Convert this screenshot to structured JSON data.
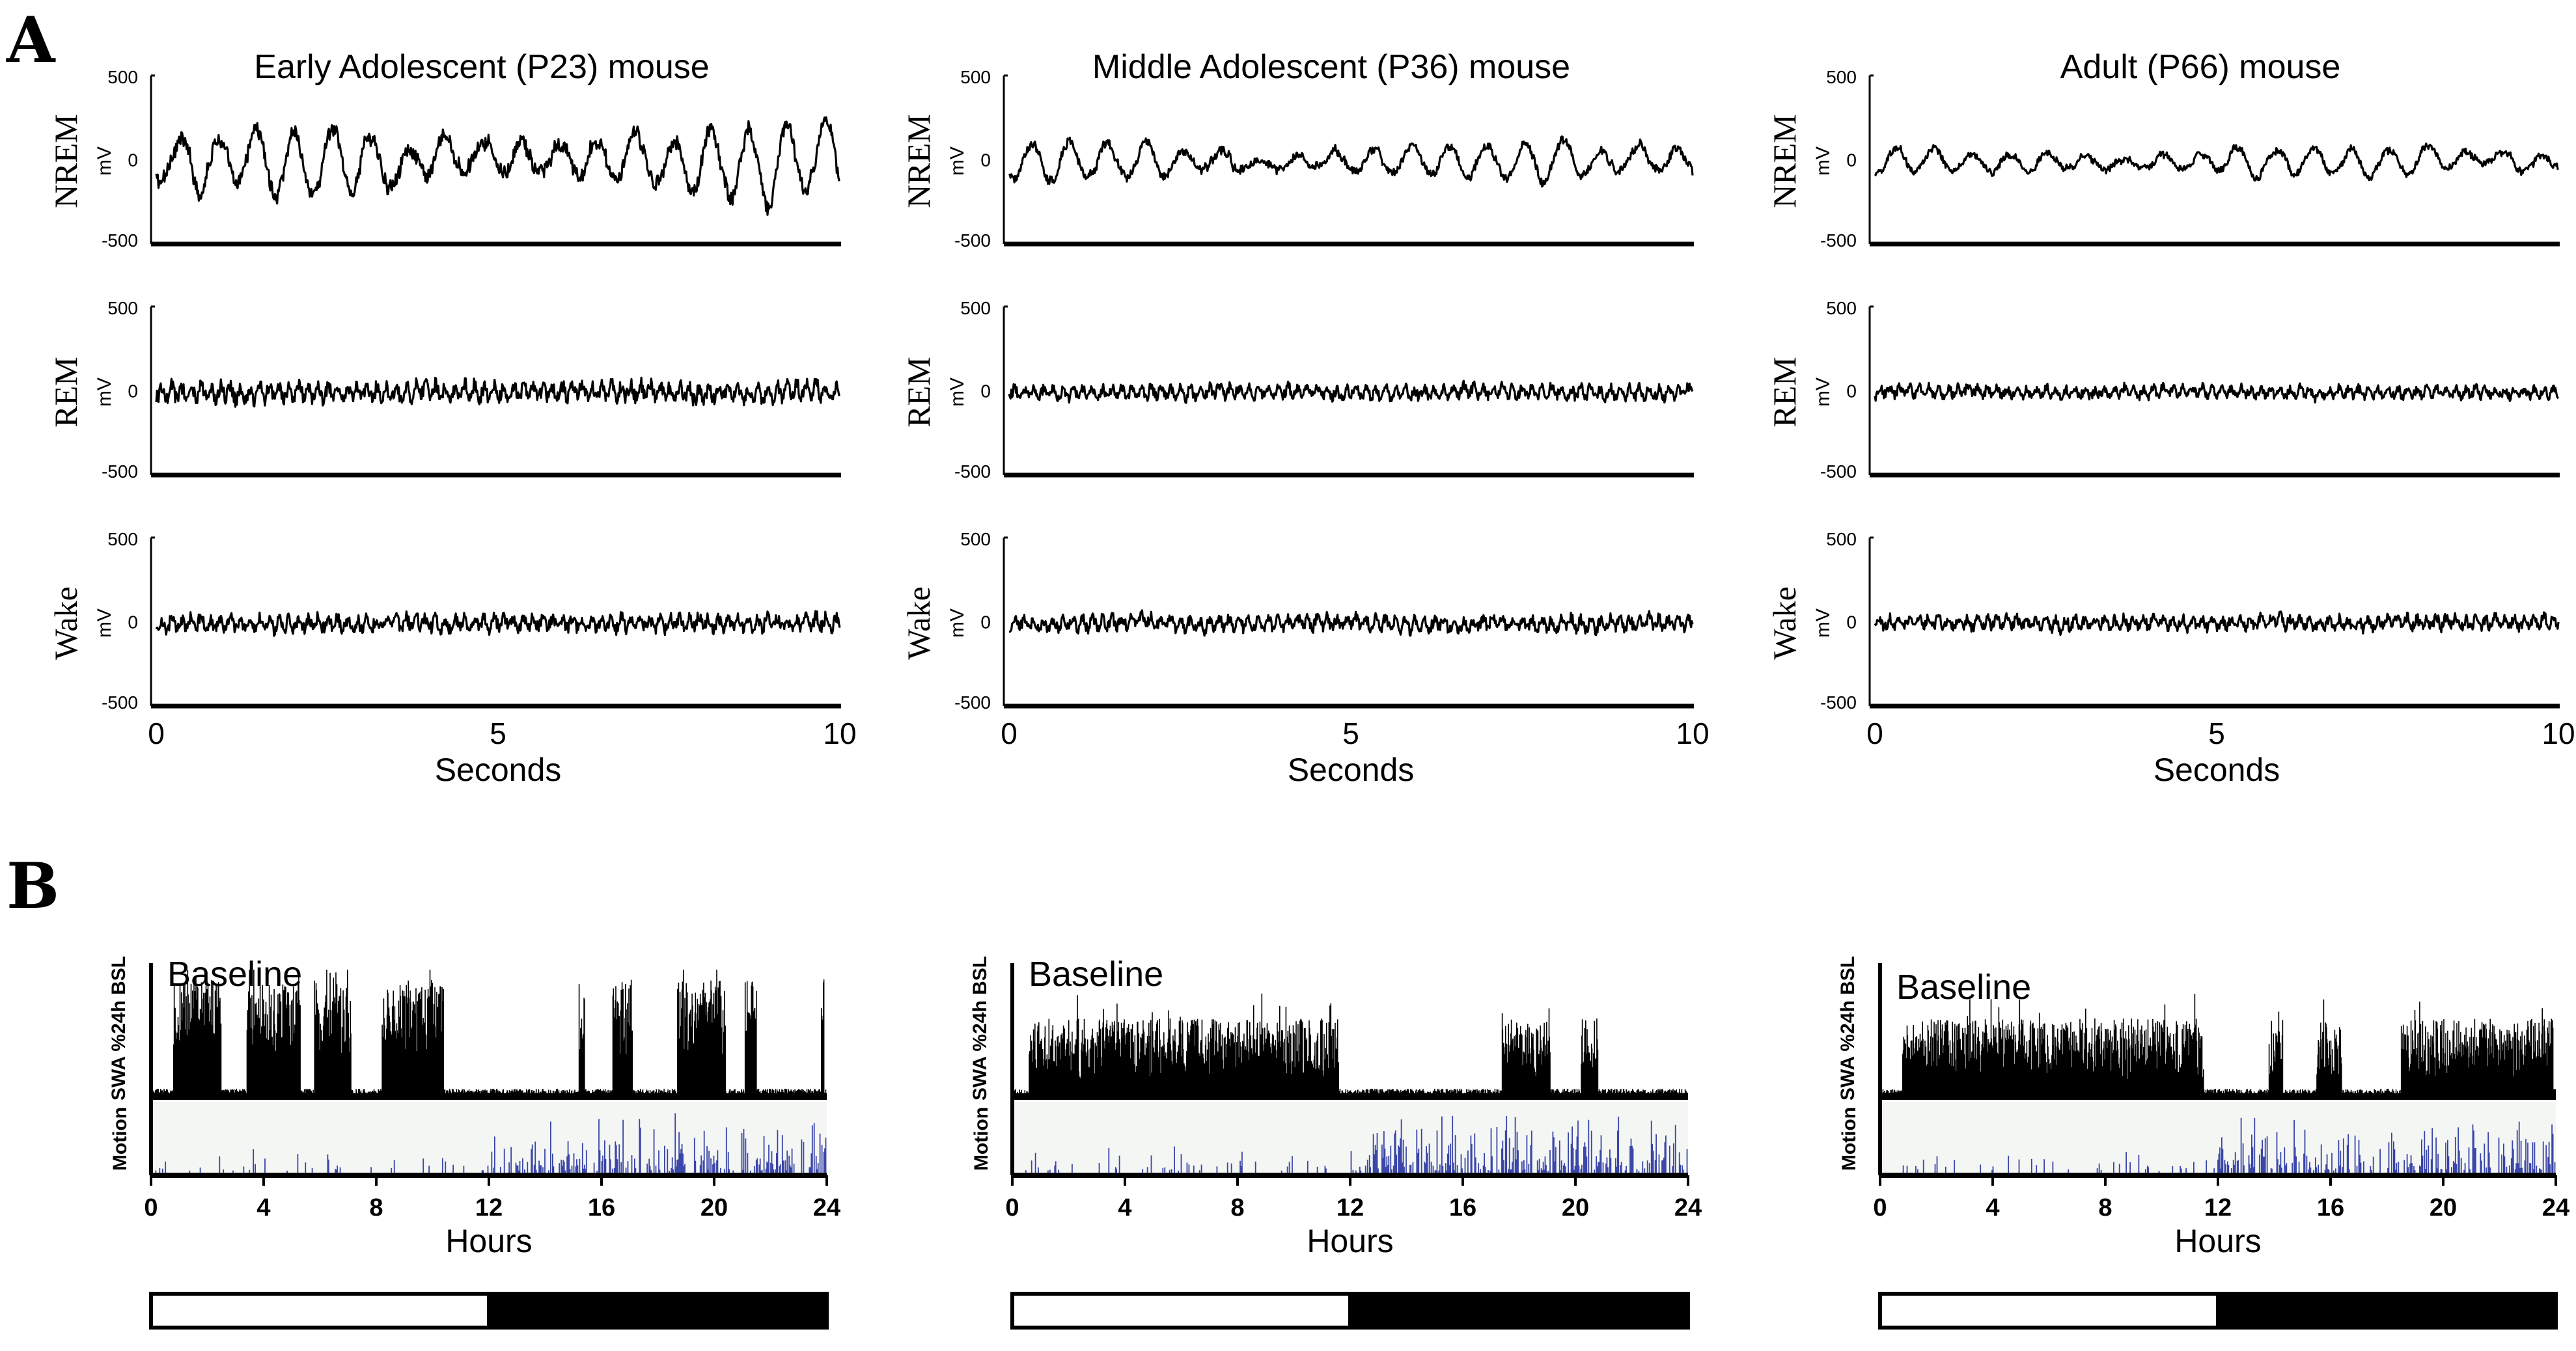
{
  "panel_labels": {
    "a": "A",
    "b": "B"
  },
  "colors": {
    "trace": "#000000",
    "motion": "#3a46a8",
    "motion_bg": "#f4f6f4",
    "light": "#ffffff",
    "dark": "#000000"
  },
  "chart_data": [
    {
      "panel": "A",
      "type": "line",
      "description_type": "EEG traces, 3 ages x 3 vigilance states",
      "columns": [
        "Early Adolescent (P23) mouse",
        "Middle Adolescent (P36) mouse",
        "Adult (P66) mouse"
      ],
      "rows": [
        "NREM",
        "REM",
        "Wake"
      ],
      "ylabel": "mV",
      "yticks": [
        "500",
        "0",
        "-500"
      ],
      "ylim": [
        -500,
        500
      ],
      "xlabel": "Seconds",
      "xticks": [
        "0",
        "5",
        "10"
      ],
      "xlim": [
        0,
        10
      ],
      "amplitude": [
        [
          360,
          200,
          160
        ],
        [
          150,
          110,
          95
        ],
        [
          130,
          120,
          110
        ]
      ]
    },
    {
      "panel": "B",
      "type": "bar",
      "description_type": "24h SWA and motion time course",
      "series_labels": [
        "SWA %24h BSL",
        "Motion"
      ],
      "panel_text": "Baseline",
      "xlabel": "Hours",
      "xticks": [
        "0",
        "4",
        "8",
        "12",
        "16",
        "20",
        "24"
      ],
      "xlim": [
        0,
        24
      ],
      "light_dark": {
        "light_hours": [
          0,
          12
        ],
        "dark_hours": [
          12,
          24
        ]
      },
      "swa_bursts": [
        [
          [
            0.8,
            2.5
          ],
          [
            3.4,
            5.3
          ],
          [
            5.8,
            7.1
          ],
          [
            8.2,
            10.4
          ],
          [
            15.2,
            15.4
          ],
          [
            16.4,
            17.1
          ],
          [
            18.7,
            20.4
          ],
          [
            21.1,
            21.5
          ],
          [
            23.8,
            23.9
          ]
        ],
        [
          [
            0.6,
            11.6
          ],
          [
            17.4,
            19.1
          ],
          [
            20.2,
            20.8
          ]
        ],
        [
          [
            0.8,
            11.5
          ],
          [
            13.8,
            14.3
          ],
          [
            15.5,
            16.4
          ],
          [
            18.5,
            23.9
          ]
        ]
      ]
    }
  ]
}
